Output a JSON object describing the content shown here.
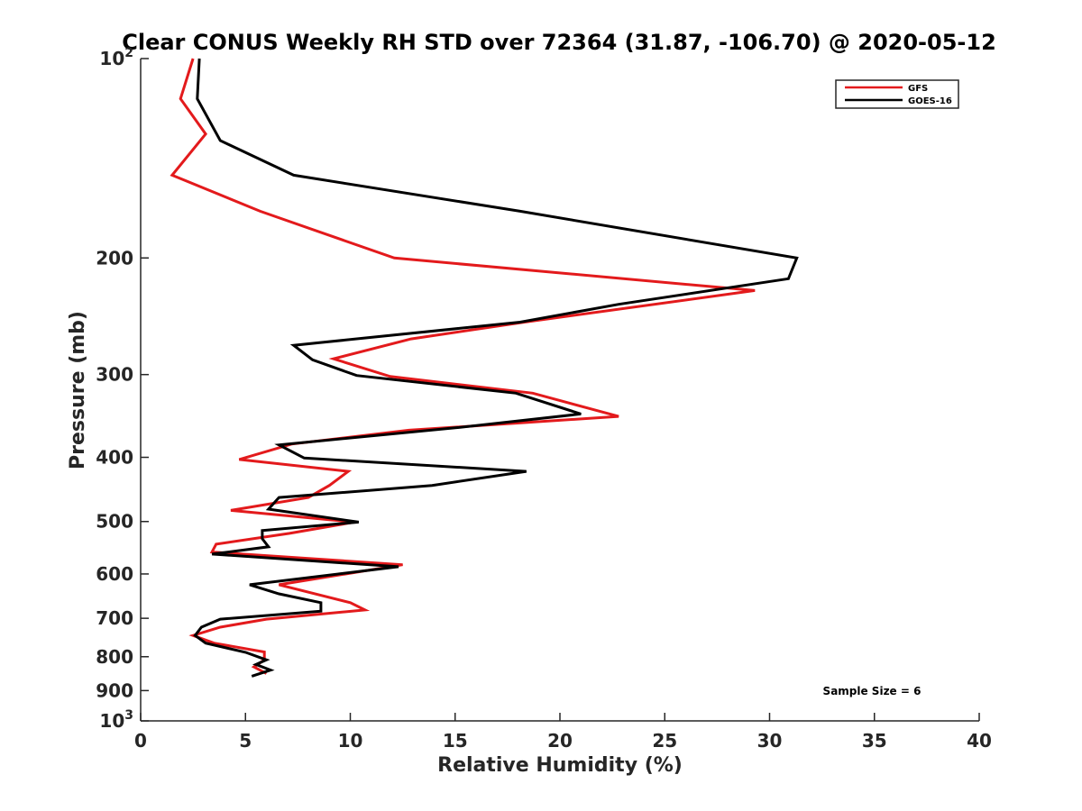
{
  "chart_data": {
    "type": "line",
    "title": "Clear CONUS Weekly RH STD over 72364 (31.87, -106.70) @ 2020-05-12",
    "xlabel": "Relative Humidity (%)",
    "ylabel": "Pressure (mb)",
    "xlim": [
      0,
      40
    ],
    "ylim": [
      100,
      1000
    ],
    "y_scale": "log",
    "y_reversed": true,
    "grid": false,
    "legend_position": "top-right",
    "x_ticks": [
      "0",
      "5",
      "10",
      "15",
      "20",
      "25",
      "30",
      "35",
      "40"
    ],
    "y_ticks": [
      {
        "value": 100,
        "label": "10",
        "sup": "2"
      },
      {
        "value": 200,
        "label": "200",
        "sup": ""
      },
      {
        "value": 300,
        "label": "300",
        "sup": ""
      },
      {
        "value": 400,
        "label": "400",
        "sup": ""
      },
      {
        "value": 500,
        "label": "500",
        "sup": ""
      },
      {
        "value": 600,
        "label": "600",
        "sup": ""
      },
      {
        "value": 700,
        "label": "700",
        "sup": ""
      },
      {
        "value": 800,
        "label": "800",
        "sup": ""
      },
      {
        "value": 900,
        "label": "900",
        "sup": ""
      },
      {
        "value": 1000,
        "label": "10",
        "sup": "3"
      }
    ],
    "series": [
      {
        "name": "GFS",
        "color": "#e31a1c",
        "points": [
          [
            2.5,
            100
          ],
          [
            1.9,
            115
          ],
          [
            3.1,
            130
          ],
          [
            1.5,
            150
          ],
          [
            5.7,
            170
          ],
          [
            12.1,
            200
          ],
          [
            29.3,
            224
          ],
          [
            18.3,
            250
          ],
          [
            12.9,
            265
          ],
          [
            9.2,
            284
          ],
          [
            11.9,
            302
          ],
          [
            18.7,
            320
          ],
          [
            22.8,
            347
          ],
          [
            12.8,
            364
          ],
          [
            7.2,
            382
          ],
          [
            4.7,
            403
          ],
          [
            9.9,
            420
          ],
          [
            9.0,
            441
          ],
          [
            8.0,
            460
          ],
          [
            4.3,
            481
          ],
          [
            10.2,
            501
          ],
          [
            7.1,
            521
          ],
          [
            3.6,
            541
          ],
          [
            3.4,
            556
          ],
          [
            12.5,
            581
          ],
          [
            6.6,
            623
          ],
          [
            10.0,
            663
          ],
          [
            10.7,
            680
          ],
          [
            6.0,
            702
          ],
          [
            3.8,
            722
          ],
          [
            2.5,
            743
          ],
          [
            3.5,
            763
          ],
          [
            5.9,
            787
          ],
          [
            5.9,
            809
          ],
          [
            5.4,
            829
          ],
          [
            6.0,
            848
          ]
        ]
      },
      {
        "name": "GOES-16",
        "color": "#000000",
        "points": [
          [
            2.8,
            100
          ],
          [
            2.7,
            115
          ],
          [
            3.8,
            133
          ],
          [
            7.3,
            150
          ],
          [
            18.1,
            170
          ],
          [
            31.3,
            200
          ],
          [
            30.9,
            215
          ],
          [
            22.8,
            235
          ],
          [
            18.1,
            250
          ],
          [
            7.3,
            271
          ],
          [
            8.2,
            285
          ],
          [
            10.3,
            301
          ],
          [
            17.9,
            320
          ],
          [
            21.0,
            344
          ],
          [
            15.0,
            361
          ],
          [
            6.6,
            383
          ],
          [
            7.8,
            401
          ],
          [
            18.4,
            420
          ],
          [
            13.9,
            441
          ],
          [
            6.6,
            460
          ],
          [
            6.1,
            479
          ],
          [
            10.4,
            501
          ],
          [
            5.8,
            516
          ],
          [
            5.8,
            531
          ],
          [
            6.1,
            546
          ],
          [
            3.4,
            560
          ],
          [
            12.3,
            585
          ],
          [
            5.2,
            623
          ],
          [
            6.6,
            643
          ],
          [
            8.6,
            663
          ],
          [
            8.6,
            683
          ],
          [
            3.8,
            702
          ],
          [
            2.9,
            722
          ],
          [
            2.6,
            743
          ],
          [
            3.1,
            763
          ],
          [
            5.0,
            788
          ],
          [
            6.0,
            809
          ],
          [
            5.5,
            822
          ],
          [
            6.2,
            838
          ],
          [
            5.3,
            856
          ]
        ]
      }
    ],
    "annotations": [
      "Sample Size = 6"
    ]
  }
}
